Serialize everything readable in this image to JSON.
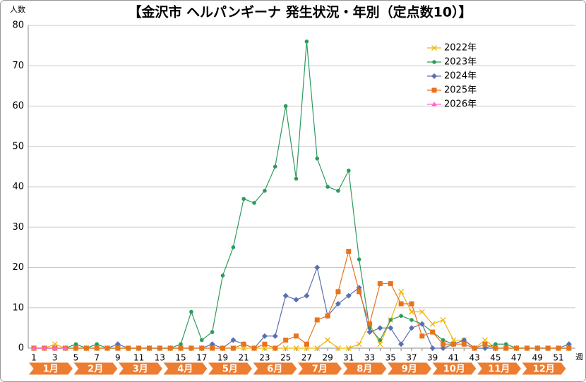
{
  "chart_data": {
    "type": "line",
    "title": "【金沢市 ヘルパンギーナ 発生状況・年別（定点数10）】",
    "y_label": "人数",
    "x_label": "週",
    "categories": [
      1,
      null,
      3,
      null,
      5,
      null,
      7,
      null,
      9,
      null,
      11,
      null,
      13,
      null,
      15,
      null,
      17,
      null,
      19,
      null,
      21,
      null,
      23,
      null,
      25,
      null,
      27,
      null,
      29,
      null,
      31,
      null,
      33,
      null,
      35,
      null,
      37,
      null,
      39,
      null,
      41,
      null,
      43,
      null,
      45,
      null,
      47,
      null,
      49,
      null,
      51,
      null
    ],
    "ylim": [
      0,
      80
    ],
    "yticks": [
      0,
      10,
      20,
      30,
      40,
      50,
      60,
      70,
      80
    ],
    "grid": true,
    "legend": "upper right",
    "month_labels": [
      "1月",
      "2月",
      "3月",
      "4月",
      "5月",
      "6月",
      "7月",
      "8月",
      "9月",
      "10月",
      "11月",
      "12月"
    ],
    "month_color": "#ed7d31",
    "series": [
      {
        "name": "2022年",
        "color": "#f0b400",
        "marker": "x",
        "values": [
          0,
          0,
          1,
          0,
          0,
          0,
          0,
          0,
          0,
          0,
          0,
          0,
          0,
          0,
          0,
          0,
          0,
          0,
          0,
          0,
          0,
          0,
          0,
          0,
          0,
          0,
          0,
          0,
          2,
          0,
          0,
          1,
          6,
          1,
          7,
          14,
          9,
          9,
          6,
          7,
          2,
          2,
          0,
          2,
          0,
          0,
          0,
          0,
          0,
          0,
          0,
          0
        ]
      },
      {
        "name": "2023年",
        "color": "#2e9a5e",
        "marker": "circle",
        "values": [
          0,
          0,
          0,
          0,
          1,
          0,
          1,
          0,
          0,
          0,
          0,
          0,
          0,
          0,
          1,
          9,
          2,
          4,
          18,
          25,
          37,
          36,
          39,
          45,
          60,
          42,
          76,
          47,
          40,
          39,
          44,
          22,
          5,
          2,
          7,
          8,
          7,
          6,
          4,
          2,
          1,
          2,
          0,
          0,
          1,
          1,
          0,
          0,
          0,
          0,
          0,
          0
        ]
      },
      {
        "name": "2024年",
        "color": "#5a6fb0",
        "marker": "diamond",
        "values": [
          0,
          0,
          0,
          0,
          0,
          0,
          0,
          0,
          1,
          0,
          0,
          0,
          0,
          0,
          0,
          0,
          0,
          1,
          0,
          2,
          1,
          0,
          3,
          3,
          13,
          12,
          13,
          20,
          8,
          11,
          13,
          15,
          4,
          5,
          5,
          1,
          5,
          6,
          0,
          0,
          1,
          2,
          0,
          0,
          0,
          0,
          0,
          0,
          0,
          0,
          0,
          1
        ]
      },
      {
        "name": "2025年",
        "color": "#e8731c",
        "marker": "square",
        "values": [
          0,
          0,
          0,
          0,
          0,
          0,
          0,
          0,
          0,
          0,
          0,
          0,
          0,
          0,
          0,
          0,
          0,
          0,
          0,
          0,
          1,
          0,
          1,
          0,
          2,
          3,
          1,
          7,
          8,
          14,
          24,
          14,
          6,
          16,
          16,
          11,
          11,
          3,
          4,
          1,
          1,
          1,
          0,
          1,
          0,
          0,
          0,
          0,
          0,
          0,
          0,
          0
        ]
      },
      {
        "name": "2026年",
        "color": "#ff66cc",
        "marker": "triangle",
        "values": [
          0,
          0,
          0,
          0,
          null,
          null,
          null,
          null,
          null,
          null,
          null,
          null,
          null,
          null,
          null,
          null,
          null,
          null,
          null,
          null,
          null,
          null,
          null,
          null,
          null,
          null,
          null,
          null,
          null,
          null,
          null,
          null,
          null,
          null,
          null,
          null,
          null,
          null,
          null,
          null,
          null,
          null,
          null,
          null,
          null,
          null,
          null,
          null,
          null,
          null,
          null,
          null
        ]
      }
    ]
  }
}
